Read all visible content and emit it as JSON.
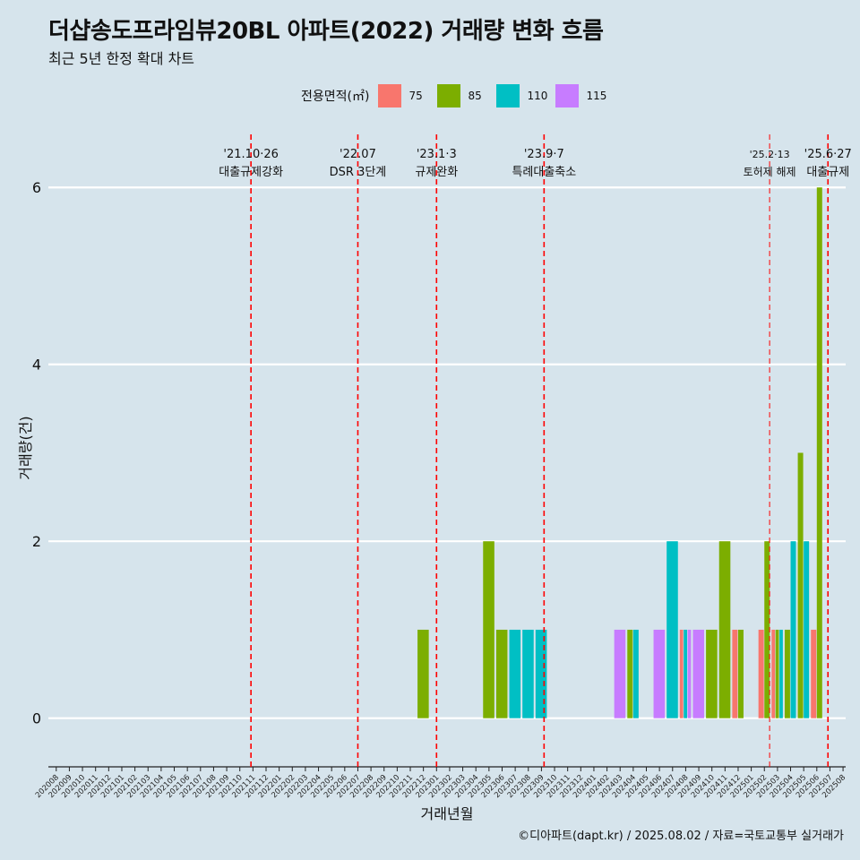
{
  "chart_data": {
    "type": "bar",
    "title": "더샵송도프라임뷰20BL 아파트(2022) 거래량 변화 흐름",
    "subtitle": "최근 5년 한정 확대 차트",
    "xlabel": "거래년월",
    "ylabel": "거래량(건)",
    "ylim": [
      -0.55,
      6.6
    ],
    "yticks": [
      0,
      2,
      4,
      6
    ],
    "grid": true,
    "legend_position": "top",
    "legend_title": "전용면적(㎡)",
    "categories": [
      "202008",
      "202009",
      "202010",
      "202011",
      "202012",
      "202101",
      "202102",
      "202103",
      "202104",
      "202105",
      "202106",
      "202107",
      "202108",
      "202109",
      "202110",
      "202111",
      "202112",
      "202201",
      "202202",
      "202203",
      "202204",
      "202205",
      "202206",
      "202207",
      "202208",
      "202209",
      "202210",
      "202211",
      "202212",
      "202301",
      "202302",
      "202303",
      "202304",
      "202305",
      "202306",
      "202307",
      "202308",
      "202309",
      "202310",
      "202311",
      "202312",
      "202401",
      "202402",
      "202403",
      "202404",
      "202405",
      "202406",
      "202407",
      "202408",
      "202409",
      "202410",
      "202411",
      "202412",
      "202501",
      "202502",
      "202503",
      "202504",
      "202505",
      "202506",
      "202507",
      "202508"
    ],
    "series": [
      {
        "name": "75",
        "color": "#f8766d",
        "values": [
          0,
          0,
          0,
          0,
          0,
          0,
          0,
          0,
          0,
          0,
          0,
          0,
          0,
          0,
          0,
          0,
          0,
          0,
          0,
          0,
          0,
          0,
          0,
          0,
          0,
          0,
          0,
          0,
          0,
          0,
          0,
          0,
          0,
          0,
          0,
          0,
          0,
          0,
          0,
          0,
          0,
          0,
          0,
          0,
          0,
          0,
          0,
          0,
          1,
          0,
          0,
          0,
          1,
          0,
          1,
          1,
          0,
          0,
          1,
          0,
          0
        ]
      },
      {
        "name": "85",
        "color": "#7cae00",
        "values": [
          0,
          0,
          0,
          0,
          0,
          0,
          0,
          0,
          0,
          0,
          0,
          0,
          0,
          0,
          0,
          0,
          0,
          0,
          0,
          0,
          0,
          0,
          0,
          0,
          0,
          0,
          0,
          0,
          1,
          0,
          0,
          0,
          0,
          2,
          1,
          0,
          0,
          0,
          0,
          0,
          0,
          0,
          0,
          0,
          1,
          0,
          0,
          0,
          0,
          0,
          1,
          2,
          1,
          0,
          2,
          1,
          1,
          3,
          6,
          0,
          0
        ]
      },
      {
        "name": "110",
        "color": "#00bfc4",
        "values": [
          0,
          0,
          0,
          0,
          0,
          0,
          0,
          0,
          0,
          0,
          0,
          0,
          0,
          0,
          0,
          0,
          0,
          0,
          0,
          0,
          0,
          0,
          0,
          0,
          0,
          0,
          0,
          0,
          0,
          0,
          0,
          0,
          0,
          0,
          0,
          1,
          1,
          1,
          0,
          0,
          0,
          0,
          0,
          0,
          1,
          0,
          0,
          2,
          1,
          0,
          0,
          0,
          0,
          0,
          0,
          1,
          2,
          2,
          0,
          0,
          0
        ]
      },
      {
        "name": "115",
        "color": "#c77cff",
        "values": [
          0,
          0,
          0,
          0,
          0,
          0,
          0,
          0,
          0,
          0,
          0,
          0,
          0,
          0,
          0,
          0,
          0,
          0,
          0,
          0,
          0,
          0,
          0,
          0,
          0,
          0,
          0,
          0,
          0,
          0,
          0,
          0,
          0,
          0,
          0,
          0,
          0,
          0,
          0,
          0,
          0,
          0,
          0,
          1,
          0,
          0,
          1,
          0,
          1,
          1,
          0,
          0,
          0,
          0,
          0,
          0,
          0,
          0,
          0,
          0,
          0
        ]
      }
    ],
    "annotations": [
      {
        "date": "'21.10·26",
        "label": "대출규제강화",
        "category": "202110",
        "offset": 0.85,
        "style": "bold"
      },
      {
        "date": "'22.07",
        "label": "DSR 3단계",
        "category": "202207",
        "offset": 0.0,
        "style": "bold"
      },
      {
        "date": "'23.1·3",
        "label": "규제완화",
        "category": "202301",
        "offset": 0.0,
        "style": "bold"
      },
      {
        "date": "'23.9·7",
        "label": "특례대출축소",
        "category": "202309",
        "offset": 0.2,
        "style": "bold"
      },
      {
        "date": "'25.2·13",
        "label": "토허제 해제",
        "category": "202502",
        "offset": 0.4,
        "style": "thin"
      },
      {
        "date": "'25.6·27",
        "label": "대출규제",
        "category": "202506",
        "offset": 0.85,
        "style": "bold"
      }
    ]
  },
  "caption": "©디아파트(dapt.kr) / 2025.08.02 / 자료=국토교통부 실거래가"
}
